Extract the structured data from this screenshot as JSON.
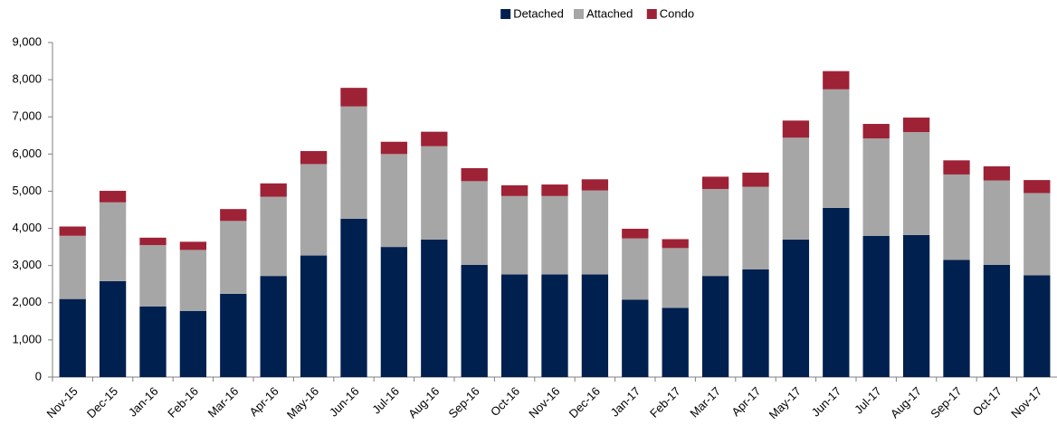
{
  "chart_data": {
    "type": "stacked_bar",
    "categories": [
      "Nov-15",
      "Dec-15",
      "Jan-16",
      "Feb-16",
      "Mar-16",
      "Apr-16",
      "May-16",
      "Jun-16",
      "Jul-16",
      "Aug-16",
      "Sep-16",
      "Oct-16",
      "Nov-16",
      "Dec-16",
      "Jan-17",
      "Feb-17",
      "Mar-17",
      "Apr-17",
      "May-17",
      "Jun-17",
      "Jul-17",
      "Aug-17",
      "Sep-17",
      "Oct-17",
      "Nov-17"
    ],
    "series": [
      {
        "name": "Detached",
        "color": "#002050",
        "values": [
          2100,
          2580,
          1900,
          1780,
          2240,
          2720,
          3270,
          4260,
          3500,
          3700,
          3020,
          2760,
          2760,
          2760,
          2080,
          1860,
          2720,
          2900,
          3700,
          4550,
          3800,
          3820,
          3150,
          3020,
          2740
        ]
      },
      {
        "name": "Attached",
        "color": "#a6a6a6",
        "values": [
          1700,
          2120,
          1650,
          1640,
          1960,
          2130,
          2460,
          3020,
          2500,
          2510,
          2250,
          2110,
          2110,
          2260,
          1650,
          1610,
          2340,
          2220,
          2740,
          3190,
          2620,
          2770,
          2300,
          2270,
          2210
        ]
      },
      {
        "name": "Condo",
        "color": "#9e2236",
        "values": [
          250,
          310,
          200,
          220,
          320,
          360,
          350,
          500,
          330,
          390,
          350,
          290,
          310,
          300,
          260,
          240,
          330,
          380,
          460,
          490,
          390,
          390,
          380,
          380,
          350
        ]
      }
    ],
    "ylim": [
      0,
      9000
    ],
    "yticks": [
      0,
      {
        "value": 1000,
        "label": "1,000"
      },
      {
        "value": 2000,
        "label": "2,000"
      },
      {
        "value": 3000,
        "label": "3,000"
      },
      {
        "value": 4000,
        "label": "4,000"
      },
      {
        "value": 5000,
        "label": "5,000"
      },
      {
        "value": 6000,
        "label": "6,000"
      },
      {
        "value": 7000,
        "label": "7,000"
      },
      {
        "value": 8000,
        "label": "8,000"
      },
      {
        "value": 9000,
        "label": "9,000"
      }
    ],
    "grid": false,
    "legend": "top"
  }
}
